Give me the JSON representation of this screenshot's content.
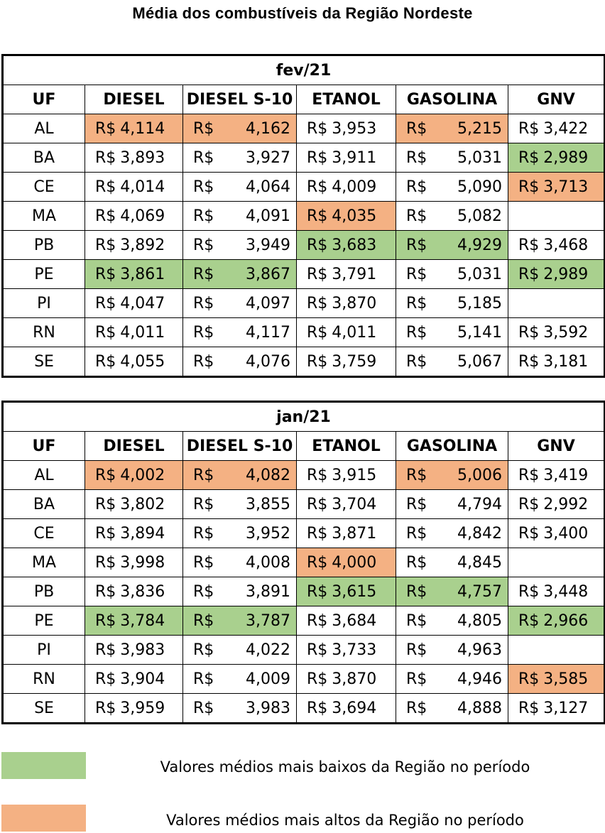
{
  "title": "Média dos combustíveis da Região Nordeste",
  "colors": {
    "low": "#a9d08e",
    "high": "#f4b183"
  },
  "headers": [
    "UF",
    "DIESEL",
    "DIESEL S-10",
    "ETANOL",
    "GASOLINA",
    "GNV"
  ],
  "currency": "R$",
  "tables": [
    {
      "period": "fev/21",
      "rows": [
        {
          "uf": "AL",
          "diesel": "4,114",
          "diesel_s10": "4,162",
          "etanol": "3,953",
          "gasolina": "5,215",
          "gnv": "3,422",
          "hl": [
            "high",
            "high",
            "",
            "high",
            ""
          ]
        },
        {
          "uf": "BA",
          "diesel": "3,893",
          "diesel_s10": "3,927",
          "etanol": "3,911",
          "gasolina": "5,031",
          "gnv": "2,989",
          "hl": [
            "",
            "",
            "",
            "",
            "low"
          ]
        },
        {
          "uf": "CE",
          "diesel": "4,014",
          "diesel_s10": "4,064",
          "etanol": "4,009",
          "gasolina": "5,090",
          "gnv": "3,713",
          "hl": [
            "",
            "",
            "",
            "",
            "high"
          ]
        },
        {
          "uf": "MA",
          "diesel": "4,069",
          "diesel_s10": "4,091",
          "etanol": "4,035",
          "gasolina": "5,082",
          "gnv": "",
          "hl": [
            "",
            "",
            "high",
            "",
            ""
          ]
        },
        {
          "uf": "PB",
          "diesel": "3,892",
          "diesel_s10": "3,949",
          "etanol": "3,683",
          "gasolina": "4,929",
          "gnv": "3,468",
          "hl": [
            "",
            "",
            "low",
            "low",
            ""
          ]
        },
        {
          "uf": "PE",
          "diesel": "3,861",
          "diesel_s10": "3,867",
          "etanol": "3,791",
          "gasolina": "5,031",
          "gnv": "2,989",
          "hl": [
            "low",
            "low",
            "",
            "",
            "low"
          ]
        },
        {
          "uf": "PI",
          "diesel": "4,047",
          "diesel_s10": "4,097",
          "etanol": "3,870",
          "gasolina": "5,185",
          "gnv": "",
          "hl": [
            "",
            "",
            "",
            "",
            ""
          ]
        },
        {
          "uf": "RN",
          "diesel": "4,011",
          "diesel_s10": "4,117",
          "etanol": "4,011",
          "gasolina": "5,141",
          "gnv": "3,592",
          "hl": [
            "",
            "",
            "",
            "",
            ""
          ]
        },
        {
          "uf": "SE",
          "diesel": "4,055",
          "diesel_s10": "4,076",
          "etanol": "3,759",
          "gasolina": "5,067",
          "gnv": "3,181",
          "hl": [
            "",
            "",
            "",
            "",
            ""
          ]
        }
      ]
    },
    {
      "period": "jan/21",
      "rows": [
        {
          "uf": "AL",
          "diesel": "4,002",
          "diesel_s10": "4,082",
          "etanol": "3,915",
          "gasolina": "5,006",
          "gnv": "3,419",
          "hl": [
            "high",
            "high",
            "",
            "high",
            ""
          ]
        },
        {
          "uf": "BA",
          "diesel": "3,802",
          "diesel_s10": "3,855",
          "etanol": "3,704",
          "gasolina": "4,794",
          "gnv": "2,992",
          "hl": [
            "",
            "",
            "",
            "",
            ""
          ]
        },
        {
          "uf": "CE",
          "diesel": "3,894",
          "diesel_s10": "3,952",
          "etanol": "3,871",
          "gasolina": "4,842",
          "gnv": "3,400",
          "hl": [
            "",
            "",
            "",
            "",
            ""
          ]
        },
        {
          "uf": "MA",
          "diesel": "3,998",
          "diesel_s10": "4,008",
          "etanol": "4,000",
          "gasolina": "4,845",
          "gnv": "",
          "hl": [
            "",
            "",
            "high",
            "",
            ""
          ]
        },
        {
          "uf": "PB",
          "diesel": "3,836",
          "diesel_s10": "3,891",
          "etanol": "3,615",
          "gasolina": "4,757",
          "gnv": "3,448",
          "hl": [
            "",
            "",
            "low",
            "low",
            ""
          ]
        },
        {
          "uf": "PE",
          "diesel": "3,784",
          "diesel_s10": "3,787",
          "etanol": "3,684",
          "gasolina": "4,805",
          "gnv": "2,966",
          "hl": [
            "low",
            "low",
            "",
            "",
            "low"
          ]
        },
        {
          "uf": "PI",
          "diesel": "3,983",
          "diesel_s10": "4,022",
          "etanol": "3,733",
          "gasolina": "4,963",
          "gnv": "",
          "hl": [
            "",
            "",
            "",
            "",
            ""
          ]
        },
        {
          "uf": "RN",
          "diesel": "3,904",
          "diesel_s10": "4,009",
          "etanol": "3,870",
          "gasolina": "4,946",
          "gnv": "3,585",
          "hl": [
            "",
            "",
            "",
            "",
            "high"
          ]
        },
        {
          "uf": "SE",
          "diesel": "3,959",
          "diesel_s10": "3,983",
          "etanol": "3,694",
          "gasolina": "4,888",
          "gnv": "3,127",
          "hl": [
            "",
            "",
            "",
            "",
            ""
          ]
        }
      ]
    }
  ],
  "legend": {
    "low_label": "Valores médios mais baixos da Região no período",
    "high_label": "Valores médios mais altos da Região no período"
  }
}
